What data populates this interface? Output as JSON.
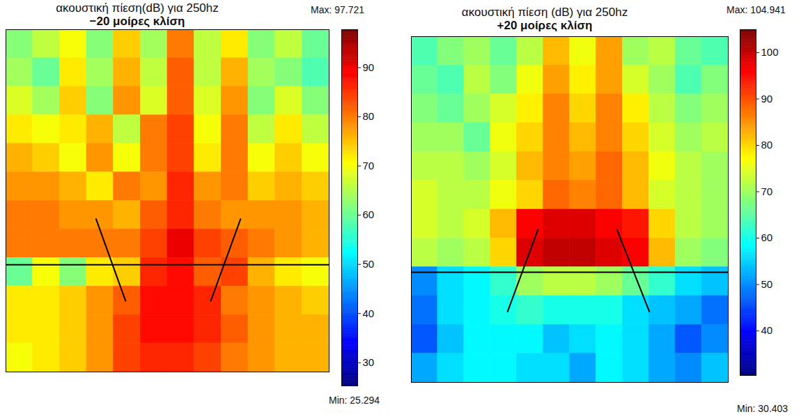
{
  "chart_data": [
    {
      "type": "heatmap",
      "title": "ακουστική πίεση(dB) για 250hz",
      "subtitle": "−20 μοίρες κλίση",
      "tick_labels": false,
      "xlim": [
        0,
        12
      ],
      "ylim": [
        0,
        12
      ],
      "cells": [
        [
          62,
          66,
          70,
          62,
          74,
          64,
          80,
          66,
          72,
          62,
          66,
          60
        ],
        [
          64,
          60,
          72,
          64,
          76,
          66,
          82,
          66,
          76,
          64,
          62,
          58
        ],
        [
          68,
          64,
          74,
          62,
          78,
          68,
          82,
          68,
          78,
          62,
          68,
          62
        ],
        [
          72,
          70,
          72,
          76,
          66,
          80,
          84,
          70,
          80,
          66,
          72,
          66
        ],
        [
          76,
          74,
          70,
          78,
          70,
          80,
          84,
          72,
          80,
          70,
          74,
          70
        ],
        [
          78,
          78,
          76,
          72,
          80,
          78,
          86,
          78,
          80,
          74,
          76,
          74
        ],
        [
          80,
          80,
          78,
          78,
          76,
          82,
          86,
          80,
          78,
          78,
          78,
          76
        ],
        [
          80,
          80,
          80,
          80,
          80,
          84,
          90,
          84,
          82,
          80,
          78,
          76
        ],
        [
          60,
          70,
          62,
          72,
          74,
          86,
          88,
          82,
          84,
          76,
          72,
          70
        ],
        [
          72,
          72,
          74,
          78,
          82,
          88,
          88,
          86,
          80,
          78,
          76,
          74
        ],
        [
          72,
          72,
          74,
          78,
          84,
          88,
          88,
          86,
          82,
          78,
          76,
          76
        ],
        [
          70,
          72,
          74,
          78,
          84,
          86,
          86,
          84,
          80,
          78,
          76,
          76
        ]
      ],
      "lines": [
        {
          "x1": 0,
          "y1": 8.24,
          "x2": 12,
          "y2": 8.24
        },
        {
          "x1": 3.34,
          "y1": 6.62,
          "x2": 4.45,
          "y2": 9.53
        },
        {
          "x1": 8.72,
          "y1": 6.62,
          "x2": 7.6,
          "y2": 9.53
        }
      ],
      "colorbar": {
        "min": {
          "value": 25.294,
          "label": "Min: 25.294"
        },
        "max": {
          "value": 97.721,
          "label": "Max: 97.721"
        },
        "ticks": [
          30,
          40,
          50,
          60,
          70,
          80,
          90
        ]
      }
    },
    {
      "type": "heatmap",
      "title": "ακουστική πίεση (dB) για 250hz",
      "subtitle": "+20 μοίρες κλίση",
      "tick_labels": false,
      "xlim": [
        0,
        12
      ],
      "ylim": [
        0,
        12
      ],
      "cells": [
        [
          64,
          68,
          70,
          66,
          72,
          82,
          76,
          84,
          70,
          72,
          66,
          64
        ],
        [
          66,
          64,
          72,
          68,
          76,
          84,
          78,
          84,
          74,
          70,
          64,
          68
        ],
        [
          68,
          66,
          70,
          74,
          78,
          86,
          80,
          86,
          78,
          72,
          68,
          70
        ],
        [
          70,
          70,
          66,
          76,
          80,
          86,
          82,
          86,
          80,
          74,
          70,
          72
        ],
        [
          72,
          72,
          70,
          74,
          82,
          86,
          84,
          88,
          82,
          76,
          72,
          70
        ],
        [
          74,
          72,
          72,
          76,
          80,
          88,
          86,
          88,
          82,
          74,
          72,
          70
        ],
        [
          74,
          72,
          74,
          82,
          96,
          98,
          98,
          96,
          94,
          80,
          72,
          70
        ],
        [
          72,
          70,
          72,
          80,
          98,
          100,
          100,
          98,
          96,
          82,
          70,
          68
        ],
        [
          50,
          56,
          58,
          62,
          70,
          72,
          72,
          70,
          66,
          62,
          56,
          54
        ],
        [
          48,
          56,
          58,
          60,
          62,
          60,
          60,
          60,
          56,
          54,
          52,
          48
        ],
        [
          46,
          54,
          58,
          58,
          58,
          54,
          56,
          58,
          56,
          52,
          46,
          50
        ],
        [
          52,
          56,
          58,
          58,
          56,
          56,
          52,
          58,
          56,
          52,
          50,
          54
        ]
      ],
      "lines": [
        {
          "x1": 0,
          "y1": 8.18,
          "x2": 12,
          "y2": 8.18
        },
        {
          "x1": 4.8,
          "y1": 6.68,
          "x2": 3.64,
          "y2": 9.56
        },
        {
          "x1": 7.78,
          "y1": 6.68,
          "x2": 9.02,
          "y2": 9.56
        }
      ],
      "colorbar": {
        "min": {
          "value": 30.403,
          "label": "Min: 30.403"
        },
        "max": {
          "value": 104.941,
          "label": "Max: 104.941"
        },
        "ticks": [
          40,
          50,
          60,
          70,
          80,
          90,
          100
        ]
      }
    }
  ]
}
